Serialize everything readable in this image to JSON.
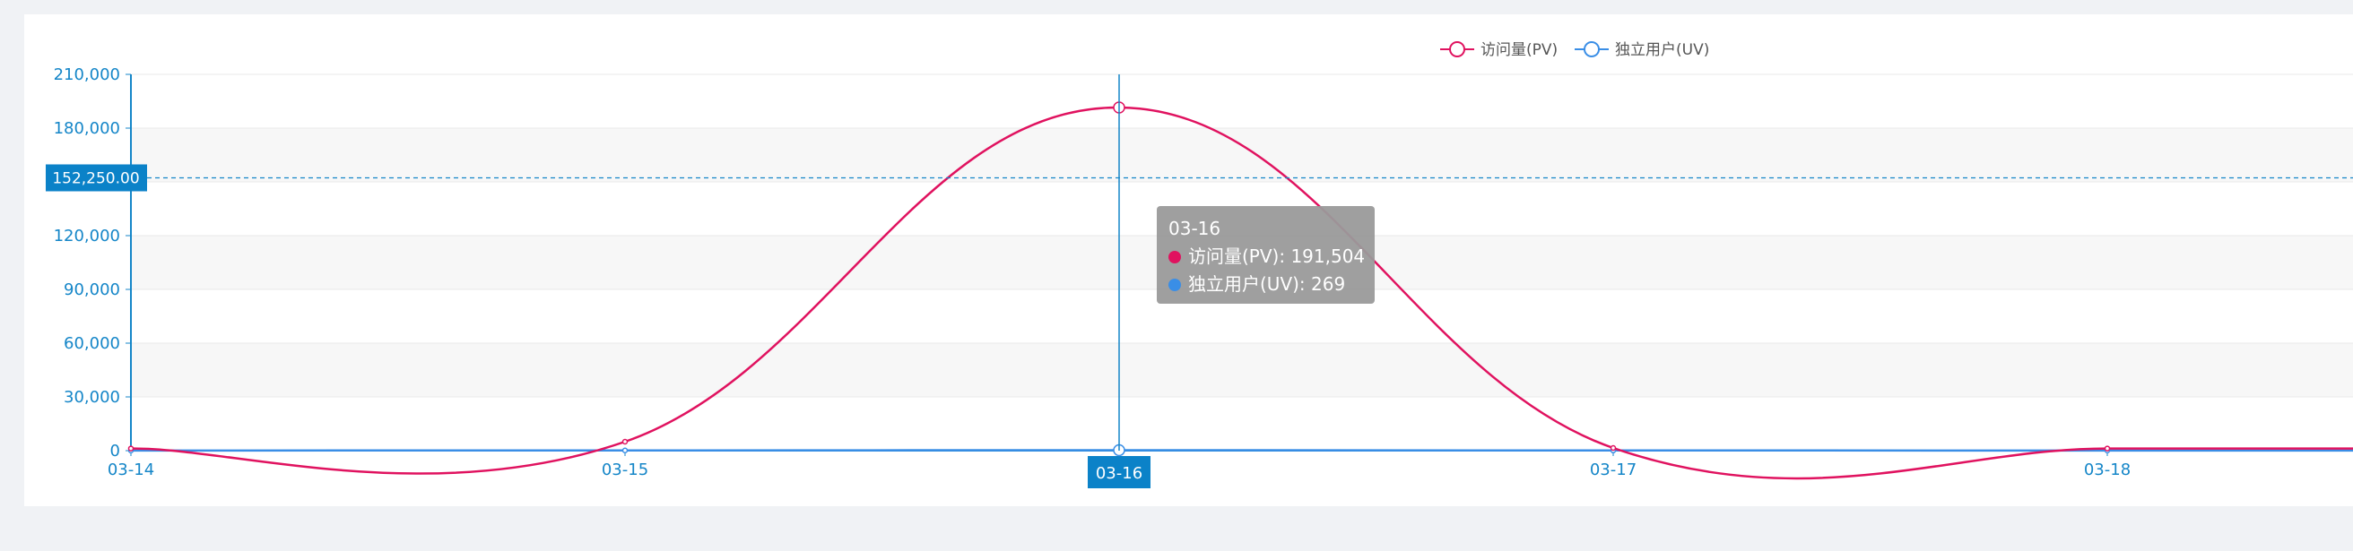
{
  "colors": {
    "pv": "#e0125f",
    "uv": "#3a8ee6",
    "axis": "#1586c8",
    "band": "#f7f7f7",
    "grid": "#e8e8e8",
    "tooltip_bg": "#9a9a9a",
    "tooltip_text": "#ffffff",
    "label_bg": "#0b82c8",
    "legend_text": "#555555"
  },
  "chart_data": {
    "type": "line",
    "smooth": true,
    "categories": [
      "03-14",
      "03-15",
      "03-16",
      "03-17",
      "03-18"
    ],
    "series": [
      {
        "name": "访问量(PV)",
        "values": [
          1200,
          5000,
          191504,
          1500,
          1200
        ]
      },
      {
        "name": "独立用户(UV)",
        "values": [
          80,
          120,
          269,
          100,
          90
        ]
      }
    ],
    "ylim": [
      0,
      210000
    ],
    "yticks": [
      {
        "value": 0,
        "label": "0"
      },
      {
        "value": 30000,
        "label": "30,000"
      },
      {
        "value": 60000,
        "label": "60,000"
      },
      {
        "value": 90000,
        "label": "90,000"
      },
      {
        "value": 120000,
        "label": "120,000"
      },
      {
        "value": 180000,
        "label": "180,000"
      },
      {
        "value": 210000,
        "label": "210,000"
      }
    ],
    "legend_position": "top-center",
    "striped_bands": true,
    "crosshair": {
      "category": "03-16",
      "y_value": 152250,
      "y_label": "152,250.00"
    },
    "tooltip": {
      "title": "03-16",
      "rows": [
        {
          "label": "访问量(PV): 191,504",
          "series": 0
        },
        {
          "label": "独立用户(UV): 269",
          "series": 1
        }
      ]
    }
  }
}
